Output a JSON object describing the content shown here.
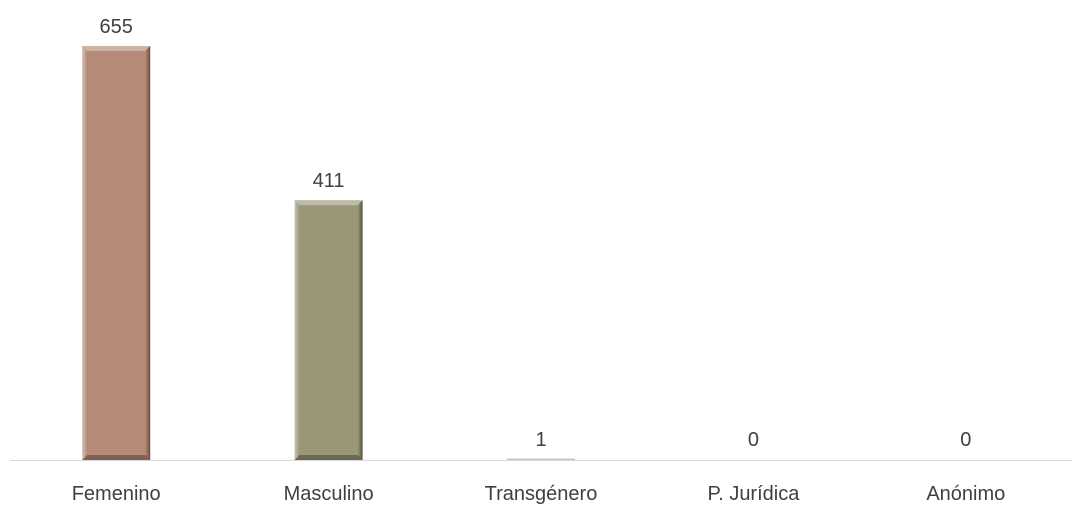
{
  "chart_data": {
    "type": "bar",
    "categories": [
      "Femenino",
      "Masculino",
      "Transgénero",
      "P. Jurídica",
      "Anónimo"
    ],
    "values": [
      655,
      411,
      1,
      0,
      0
    ],
    "data_labels": [
      "655",
      "411",
      "1",
      "0",
      "0"
    ],
    "bar_colors": [
      "#b68a78",
      "#9a9779",
      "#c9c6a8",
      "#b68a78",
      "#9a9779"
    ],
    "ylim": [
      0,
      655
    ],
    "grid": false,
    "legend": "none"
  }
}
